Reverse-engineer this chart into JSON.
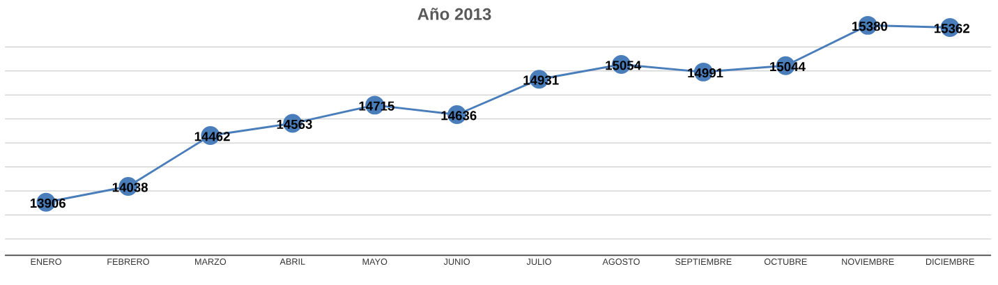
{
  "chart_data": {
    "type": "line",
    "title": "Año 2013",
    "categories": [
      "ENERO",
      "FEBRERO",
      "MARZO",
      "ABRIL",
      "MAYO",
      "JUNIO",
      "JULIO",
      "AGOSTO",
      "SEPTIEMBRE",
      "OCTUBRE",
      "NOVIEMBRE",
      "DICIEMBRE"
    ],
    "series": [
      {
        "color": "#4a7ebb",
        "values": [
          13906,
          14038,
          14462,
          14563,
          14715,
          14636,
          14931,
          15054,
          14991,
          15044,
          15380,
          15362
        ]
      }
    ],
    "tick_labels": "x",
    "grid": "y",
    "marker": "circle",
    "line_style": "solid",
    "data_labels": true
  }
}
